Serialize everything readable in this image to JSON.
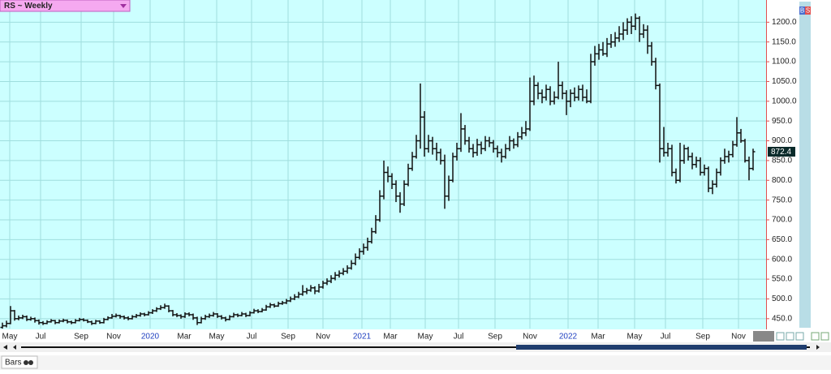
{
  "chart_data": {
    "type": "ohlc",
    "title": "RS ~ Weekly",
    "xlim": [
      -0.6,
      188.2
    ],
    "ylim": [
      425,
      1250
    ],
    "xticks": [
      {
        "value": 1.8,
        "label": "May"
      },
      {
        "value": 9.4,
        "label": "Jul"
      },
      {
        "value": 19.4,
        "label": "Sep"
      },
      {
        "value": 27.4,
        "label": "Nov"
      },
      {
        "value": 36.4,
        "label": "2020"
      },
      {
        "value": 44.8,
        "label": "Mar"
      },
      {
        "value": 52.8,
        "label": "May"
      },
      {
        "value": 61.4,
        "label": "Jul"
      },
      {
        "value": 70.4,
        "label": "Sep"
      },
      {
        "value": 79,
        "label": "Nov"
      },
      {
        "value": 88.6,
        "label": "2021"
      },
      {
        "value": 95.6,
        "label": "Mar"
      },
      {
        "value": 104.2,
        "label": "May"
      },
      {
        "value": 112.4,
        "label": "Jul"
      },
      {
        "value": 121.4,
        "label": "Sep"
      },
      {
        "value": 130,
        "label": "Nov"
      },
      {
        "value": 139.4,
        "label": "2022"
      },
      {
        "value": 146.8,
        "label": "Mar"
      },
      {
        "value": 155.8,
        "label": "May"
      },
      {
        "value": 163.4,
        "label": "Jul"
      },
      {
        "value": 172.6,
        "label": "Sep"
      },
      {
        "value": 181.4,
        "label": "Nov"
      }
    ],
    "yticks": [
      {
        "value": 450,
        "label": "450.0"
      },
      {
        "value": 500,
        "label": "500.0"
      },
      {
        "value": 550,
        "label": "550.0"
      },
      {
        "value": 600,
        "label": "600.0"
      },
      {
        "value": 650,
        "label": "650.0"
      },
      {
        "value": 700,
        "label": "700.0"
      },
      {
        "value": 750,
        "label": "750.0"
      },
      {
        "value": 800,
        "label": "800.0"
      },
      {
        "value": 850,
        "label": "850.0"
      },
      {
        "value": 900,
        "label": "900.0"
      },
      {
        "value": 950,
        "label": "950.0"
      },
      {
        "value": 1000,
        "label": "1000.0"
      },
      {
        "value": 1050,
        "label": "1050.0"
      },
      {
        "value": 1100,
        "label": "1100.0"
      },
      {
        "value": 1150,
        "label": "1150.0"
      },
      {
        "value": 1200,
        "label": "1200.0"
      }
    ],
    "grid": true,
    "color": "#111111",
    "background": "#ccffff",
    "axis_color": "#e05050",
    "year_color": "#2040c0",
    "ohlc": [
      [
        428,
        440,
        425,
        432
      ],
      [
        432,
        445,
        428,
        438
      ],
      [
        438,
        482,
        436,
        470
      ],
      [
        470,
        472,
        445,
        450
      ],
      [
        450,
        458,
        446,
        452
      ],
      [
        452,
        460,
        449,
        455
      ],
      [
        455,
        458,
        444,
        448
      ],
      [
        448,
        455,
        445,
        450
      ],
      [
        450,
        453,
        440,
        445
      ],
      [
        445,
        448,
        435,
        440
      ],
      [
        440,
        444,
        434,
        438
      ],
      [
        438,
        446,
        436,
        442
      ],
      [
        442,
        449,
        440,
        445
      ],
      [
        445,
        447,
        436,
        440
      ],
      [
        440,
        448,
        438,
        444
      ],
      [
        444,
        450,
        441,
        446
      ],
      [
        446,
        448,
        438,
        442
      ],
      [
        442,
        445,
        436,
        440
      ],
      [
        440,
        449,
        438,
        445
      ],
      [
        445,
        452,
        443,
        448
      ],
      [
        448,
        451,
        443,
        446
      ],
      [
        446,
        448,
        439,
        442
      ],
      [
        442,
        445,
        434,
        438
      ],
      [
        438,
        447,
        436,
        444
      ],
      [
        444,
        446,
        437,
        440
      ],
      [
        440,
        452,
        438,
        448
      ],
      [
        448,
        456,
        446,
        452
      ],
      [
        452,
        462,
        450,
        456
      ],
      [
        456,
        463,
        453,
        458
      ],
      [
        458,
        460,
        450,
        455
      ],
      [
        455,
        458,
        448,
        452
      ],
      [
        452,
        456,
        446,
        450
      ],
      [
        450,
        459,
        448,
        455
      ],
      [
        455,
        462,
        452,
        458
      ],
      [
        458,
        466,
        455,
        462
      ],
      [
        462,
        465,
        456,
        460
      ],
      [
        460,
        469,
        458,
        465
      ],
      [
        465,
        474,
        462,
        470
      ],
      [
        470,
        479,
        467,
        475
      ],
      [
        475,
        484,
        472,
        478
      ],
      [
        478,
        488,
        475,
        482
      ],
      [
        482,
        484,
        466,
        470
      ],
      [
        470,
        472,
        456,
        460
      ],
      [
        460,
        464,
        454,
        458
      ],
      [
        458,
        461,
        450,
        455
      ],
      [
        455,
        466,
        452,
        462
      ],
      [
        462,
        466,
        456,
        460
      ],
      [
        460,
        463,
        447,
        452
      ],
      [
        452,
        455,
        434,
        440
      ],
      [
        440,
        455,
        438,
        450
      ],
      [
        450,
        460,
        447,
        455
      ],
      [
        455,
        463,
        452,
        458
      ],
      [
        458,
        467,
        455,
        462
      ],
      [
        462,
        464,
        452,
        456
      ],
      [
        456,
        459,
        448,
        452
      ],
      [
        452,
        455,
        443,
        448
      ],
      [
        448,
        459,
        446,
        455
      ],
      [
        455,
        465,
        453,
        460
      ],
      [
        460,
        463,
        454,
        458
      ],
      [
        458,
        467,
        456,
        462
      ],
      [
        462,
        465,
        454,
        458
      ],
      [
        458,
        469,
        456,
        465
      ],
      [
        465,
        475,
        463,
        470
      ],
      [
        470,
        474,
        464,
        468
      ],
      [
        468,
        477,
        466,
        472
      ],
      [
        472,
        485,
        470,
        480
      ],
      [
        480,
        490,
        477,
        485
      ],
      [
        485,
        488,
        478,
        482
      ],
      [
        482,
        493,
        480,
        488
      ],
      [
        488,
        495,
        485,
        490
      ],
      [
        490,
        500,
        487,
        495
      ],
      [
        495,
        506,
        492,
        500
      ],
      [
        500,
        512,
        497,
        505
      ],
      [
        505,
        518,
        502,
        512
      ],
      [
        512,
        535,
        508,
        518
      ],
      [
        518,
        528,
        512,
        522
      ],
      [
        522,
        535,
        518,
        528
      ],
      [
        528,
        532,
        512,
        520
      ],
      [
        520,
        538,
        516,
        530
      ],
      [
        530,
        546,
        526,
        540
      ],
      [
        540,
        552,
        535,
        545
      ],
      [
        545,
        560,
        540,
        552
      ],
      [
        552,
        568,
        547,
        560
      ],
      [
        560,
        572,
        554,
        565
      ],
      [
        565,
        578,
        560,
        570
      ],
      [
        570,
        585,
        564,
        578
      ],
      [
        578,
        598,
        574,
        590
      ],
      [
        590,
        615,
        585,
        605
      ],
      [
        605,
        628,
        600,
        620
      ],
      [
        620,
        640,
        612,
        630
      ],
      [
        630,
        655,
        622,
        645
      ],
      [
        645,
        680,
        640,
        670
      ],
      [
        670,
        712,
        665,
        700
      ],
      [
        700,
        775,
        695,
        760
      ],
      [
        760,
        850,
        752,
        820
      ],
      [
        820,
        835,
        795,
        810
      ],
      [
        810,
        818,
        778,
        790
      ],
      [
        790,
        800,
        745,
        760
      ],
      [
        760,
        770,
        718,
        740
      ],
      [
        740,
        800,
        735,
        790
      ],
      [
        790,
        842,
        785,
        830
      ],
      [
        830,
        872,
        824,
        860
      ],
      [
        860,
        915,
        855,
        900
      ],
      [
        900,
        1045,
        880,
        960
      ],
      [
        960,
        975,
        860,
        880
      ],
      [
        880,
        915,
        870,
        900
      ],
      [
        900,
        910,
        865,
        880
      ],
      [
        880,
        895,
        850,
        870
      ],
      [
        870,
        880,
        840,
        850
      ],
      [
        850,
        865,
        728,
        760
      ],
      [
        760,
        812,
        748,
        800
      ],
      [
        800,
        870,
        795,
        860
      ],
      [
        860,
        895,
        850,
        880
      ],
      [
        880,
        970,
        872,
        930
      ],
      [
        930,
        940,
        890,
        900
      ],
      [
        900,
        910,
        870,
        880
      ],
      [
        880,
        892,
        858,
        870
      ],
      [
        870,
        905,
        862,
        890
      ],
      [
        890,
        898,
        866,
        880
      ],
      [
        880,
        912,
        874,
        900
      ],
      [
        900,
        910,
        884,
        895
      ],
      [
        895,
        902,
        870,
        880
      ],
      [
        880,
        888,
        858,
        870
      ],
      [
        870,
        880,
        845,
        860
      ],
      [
        860,
        892,
        855,
        880
      ],
      [
        880,
        912,
        874,
        900
      ],
      [
        900,
        906,
        880,
        890
      ],
      [
        890,
        922,
        884,
        910
      ],
      [
        910,
        935,
        903,
        920
      ],
      [
        920,
        950,
        912,
        930
      ],
      [
        930,
        1060,
        925,
        1000
      ],
      [
        1000,
        1065,
        990,
        1040
      ],
      [
        1040,
        1048,
        1005,
        1020
      ],
      [
        1020,
        1030,
        995,
        1010
      ],
      [
        1010,
        1042,
        1002,
        1030
      ],
      [
        1030,
        1038,
        990,
        1000
      ],
      [
        1000,
        1025,
        992,
        1010
      ],
      [
        1010,
        1100,
        1005,
        1040
      ],
      [
        1040,
        1050,
        1005,
        1020
      ],
      [
        1020,
        1028,
        965,
        1000
      ],
      [
        1000,
        1030,
        985,
        1020
      ],
      [
        1020,
        1035,
        1000,
        1010
      ],
      [
        1010,
        1040,
        1002,
        1030
      ],
      [
        1030,
        1042,
        1000,
        1010
      ],
      [
        1010,
        1030,
        995,
        1000
      ],
      [
        1000,
        1120,
        995,
        1100
      ],
      [
        1100,
        1140,
        1090,
        1120
      ],
      [
        1120,
        1145,
        1105,
        1130
      ],
      [
        1130,
        1150,
        1115,
        1120
      ],
      [
        1120,
        1160,
        1112,
        1145
      ],
      [
        1145,
        1170,
        1135,
        1150
      ],
      [
        1150,
        1175,
        1138,
        1160
      ],
      [
        1160,
        1190,
        1150,
        1170
      ],
      [
        1170,
        1200,
        1155,
        1180
      ],
      [
        1180,
        1210,
        1168,
        1200
      ],
      [
        1200,
        1215,
        1170,
        1190
      ],
      [
        1190,
        1222,
        1180,
        1210
      ],
      [
        1210,
        1215,
        1150,
        1170
      ],
      [
        1170,
        1195,
        1160,
        1180
      ],
      [
        1180,
        1192,
        1120,
        1140
      ],
      [
        1140,
        1150,
        1090,
        1100
      ],
      [
        1100,
        1110,
        1030,
        1040
      ],
      [
        1040,
        1045,
        845,
        880
      ],
      [
        880,
        935,
        860,
        870
      ],
      [
        870,
        895,
        860,
        880
      ],
      [
        880,
        890,
        810,
        820
      ],
      [
        820,
        830,
        792,
        800
      ],
      [
        800,
        895,
        795,
        850
      ],
      [
        850,
        890,
        842,
        880
      ],
      [
        880,
        885,
        850,
        860
      ],
      [
        860,
        870,
        828,
        840
      ],
      [
        840,
        860,
        832,
        850
      ],
      [
        850,
        858,
        812,
        820
      ],
      [
        820,
        840,
        812,
        830
      ],
      [
        830,
        835,
        770,
        780
      ],
      [
        780,
        800,
        765,
        790
      ],
      [
        790,
        830,
        782,
        820
      ],
      [
        820,
        858,
        812,
        850
      ],
      [
        850,
        880,
        842,
        860
      ],
      [
        860,
        875,
        845,
        865
      ],
      [
        865,
        900,
        858,
        890
      ],
      [
        890,
        960,
        885,
        920
      ],
      [
        920,
        930,
        895,
        900
      ],
      [
        900,
        905,
        845,
        850
      ],
      [
        850,
        860,
        800,
        830
      ],
      [
        830,
        880,
        825,
        872.4
      ]
    ]
  },
  "ui": {
    "tab": "Bars",
    "badge": [
      "B",
      "S"
    ]
  }
}
